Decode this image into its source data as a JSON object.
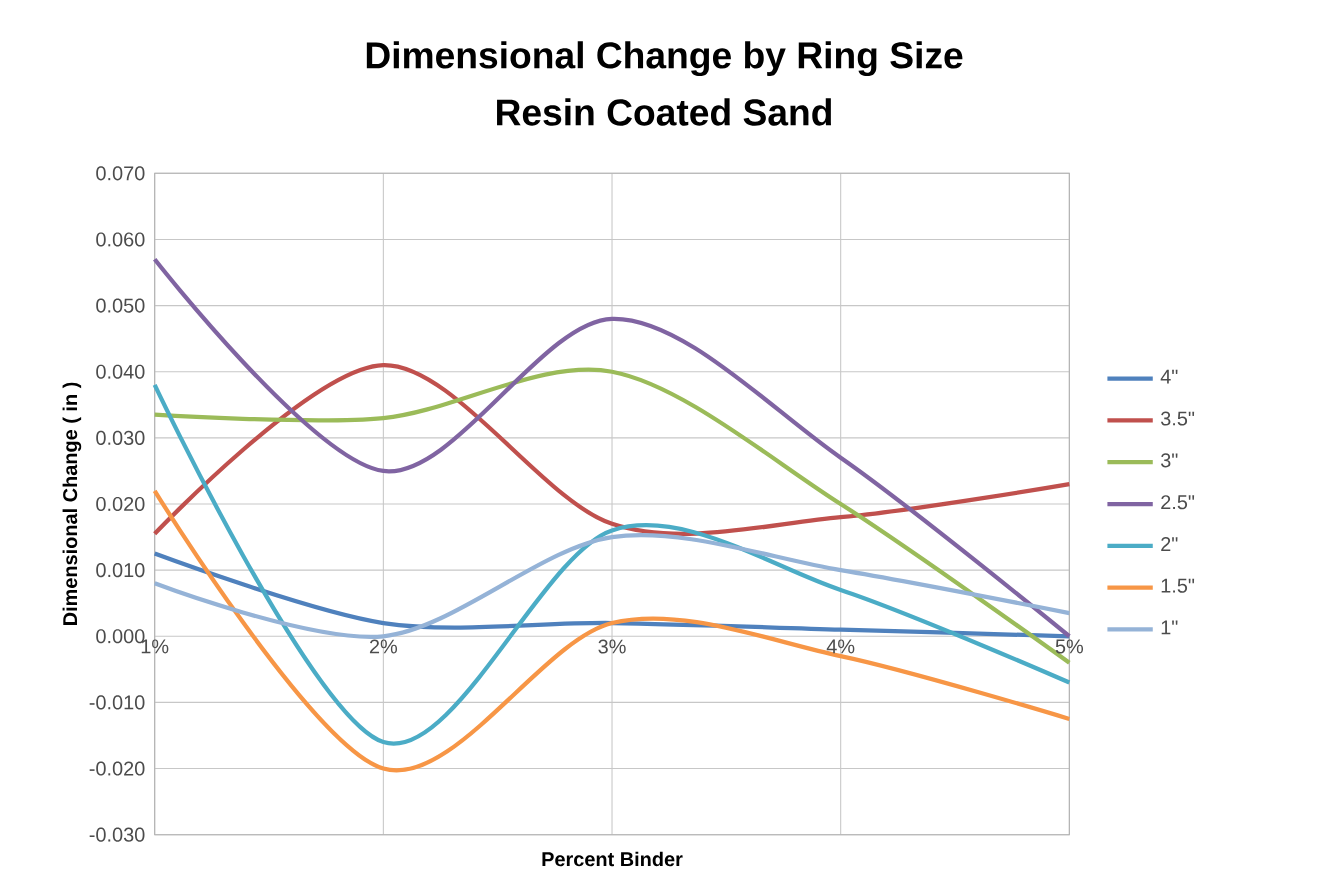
{
  "chart_data": {
    "type": "line",
    "title": "Dimensional Change by Ring Size",
    "subtitle": "Resin Coated Sand",
    "xlabel": "Percent Binder",
    "ylabel": "Dimensional Change ( in )",
    "categories": [
      "1%",
      "2%",
      "3%",
      "4%",
      "5%"
    ],
    "ylim": [
      -0.03,
      0.07
    ],
    "yticks": [
      {
        "value": -0.03,
        "label": "-0.030"
      },
      {
        "value": -0.02,
        "label": "-0.020"
      },
      {
        "value": -0.01,
        "label": "-0.010"
      },
      {
        "value": 0,
        "label": "0.000"
      },
      {
        "value": 0.01,
        "label": "0.010"
      },
      {
        "value": 0.02,
        "label": "0.020"
      },
      {
        "value": 0.03,
        "label": "0.030"
      },
      {
        "value": 0.04,
        "label": "0.040"
      },
      {
        "value": 0.05,
        "label": "0.050"
      },
      {
        "value": 0.06,
        "label": "0.060"
      },
      {
        "value": 0.07,
        "label": "0.070"
      }
    ],
    "grid": true,
    "legend": "right",
    "marker": "none",
    "line_style": "solid",
    "series": [
      {
        "name": "4\"",
        "color": "#4f81bd",
        "values": [
          0.0125,
          0.002,
          0.002,
          0.001,
          0.0
        ]
      },
      {
        "name": "3.5\"",
        "color": "#c0504d",
        "values": [
          0.0155,
          0.041,
          0.017,
          0.018,
          0.023
        ]
      },
      {
        "name": "3\"",
        "color": "#9bbb59",
        "values": [
          0.0335,
          0.033,
          0.04,
          0.02,
          -0.004
        ]
      },
      {
        "name": "2.5\"",
        "color": "#8064a2",
        "values": [
          0.057,
          0.025,
          0.048,
          0.027,
          0.0
        ]
      },
      {
        "name": "2\"",
        "color": "#4bacc6",
        "values": [
          0.038,
          -0.016,
          0.016,
          0.007,
          -0.007
        ]
      },
      {
        "name": "1.5\"",
        "color": "#f79646",
        "values": [
          0.022,
          -0.02,
          0.002,
          -0.003,
          -0.0125
        ]
      },
      {
        "name": "1\"",
        "color": "#95b3d7",
        "values": [
          0.008,
          0.0,
          0.015,
          0.01,
          0.0035
        ]
      }
    ]
  }
}
